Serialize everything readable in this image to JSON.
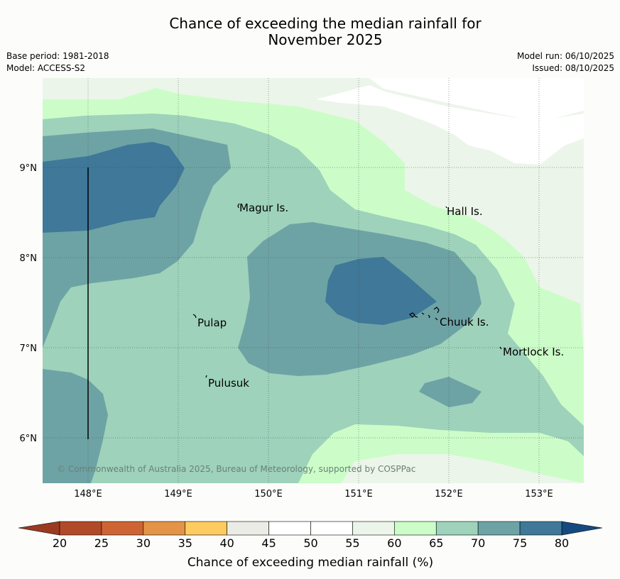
{
  "title": {
    "line1": "Chance of exceeding the median rainfall for",
    "line2": "November 2025"
  },
  "meta": {
    "base_period": "Base period: 1981-2018",
    "model": "Model: ACCESS-S2",
    "model_run": "Model run: 06/10/2025",
    "issued": "Issued: 08/10/2025"
  },
  "axes": {
    "lon_labels": [
      "148°E",
      "149°E",
      "150°E",
      "151°E",
      "152°E",
      "153°E"
    ],
    "lat_labels": [
      "9°N",
      "8°N",
      "7°N",
      "6°N"
    ]
  },
  "places": {
    "magur": "Magur Is.",
    "hall": "Hall Is.",
    "pulap": "Pulap",
    "chuuk": "Chuuk Is.",
    "mortlock": "Mortlock Is.",
    "pulusuk": "Pulusuk"
  },
  "copyright": "© Commonwealth of Australia 2025, Bureau of Meteorology, supported by COSPPac",
  "legend": {
    "title": "Chance of exceeding median rainfall (%)",
    "ticks": [
      "20",
      "25",
      "30",
      "35",
      "40",
      "45",
      "50",
      "55",
      "60",
      "65",
      "70",
      "75",
      "80"
    ],
    "colors": [
      "#b14a28",
      "#ce6434",
      "#e39448",
      "#fecb60",
      "#ecece7",
      "#ffffff",
      "#ffffff",
      "#ecf5ea",
      "#ccfdc8",
      "#9ed2bb",
      "#6ea3a5",
      "#3f7898"
    ],
    "under_color": "#9a3a20",
    "over_color": "#144a80"
  },
  "colors": {
    "c55_60": "#ecf5ea",
    "c60_65": "#ccfdc8",
    "c65_70": "#9ed2bb",
    "c70_75": "#6ea3a5",
    "c75_80": "#3f7898"
  }
}
